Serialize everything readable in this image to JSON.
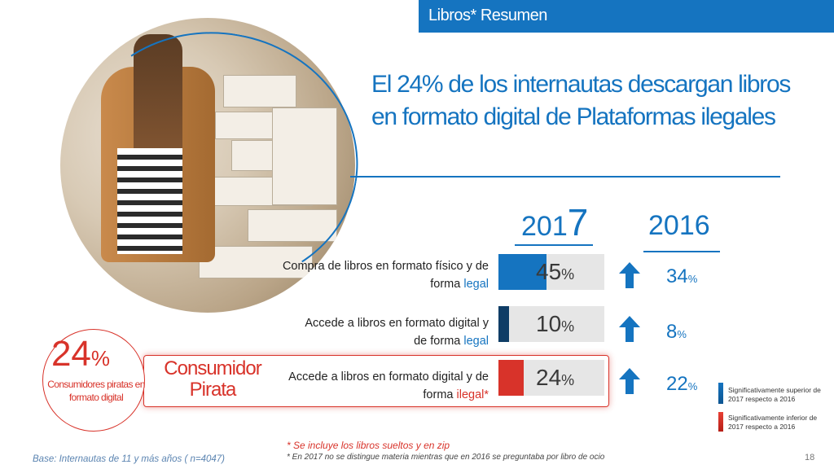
{
  "header": {
    "title": "Libros* Resumen"
  },
  "colors": {
    "brand_blue": "#1574c0",
    "dark_navy": "#0f3d66",
    "pirate_red": "#d8332a",
    "bar_bg": "#e6e6e6"
  },
  "headline": "El 24% de los internautas descargan libros en formato digital de Plataformas ilegales",
  "years": {
    "current_prefix": "201",
    "current_suffix": "7",
    "previous": "2016"
  },
  "chart_data": {
    "type": "bar",
    "categories": [
      "Compra de libros en formato físico y de forma legal",
      "Accede a libros en formato digital y de forma legal",
      "Accede a libros en formato digital y de forma ilegal*"
    ],
    "series": [
      {
        "name": "2017",
        "values": [
          45,
          10,
          24
        ]
      },
      {
        "name": "2016",
        "values": [
          34,
          8,
          22
        ]
      }
    ],
    "ylim": [
      0,
      100
    ],
    "unit": "%"
  },
  "rows": [
    {
      "label_a": "Compra de libros en formato físico y de",
      "label_b_plain": "forma ",
      "label_b_accent": "legal",
      "accent": "blue",
      "value_2017": "45",
      "value_2016": "34",
      "bar_color": "#1574c0",
      "trend": "up-arrow-icon"
    },
    {
      "label_a": "Accede a libros  en formato digital y",
      "label_b_plain": "de forma ",
      "label_b_accent": "legal",
      "accent": "blue",
      "value_2017": "10",
      "value_2016": "8",
      "bar_color": "#0f3d66",
      "trend": "up-arrow-icon"
    },
    {
      "label_a": "Accede a libros en formato digital y de",
      "label_b_plain": "forma ",
      "label_b_accent": "ilegal*",
      "accent": "red",
      "value_2017": "24",
      "value_2016": "22",
      "bar_color": "#d8332a",
      "trend": "up-arrow-icon"
    }
  ],
  "pct_symbol": "%",
  "pirate": {
    "value": "24",
    "subtitle": "Consumidores piratas en formato digital",
    "title": "Consumidor Pirata"
  },
  "legend": {
    "superior": "Significativamente superior de 2017  respecto a 2016",
    "inferior": "Significativamente inferior de 2017  respecto a 2016"
  },
  "footnotes": {
    "note1": "* Se incluye los libros sueltos y en zip",
    "note2": "* En 2017 no se distingue materia mientras que en 2016 se preguntaba por libro de ocio"
  },
  "base": "Base: Internautas de 11 y más años ( n=4047)",
  "page_number": "18"
}
